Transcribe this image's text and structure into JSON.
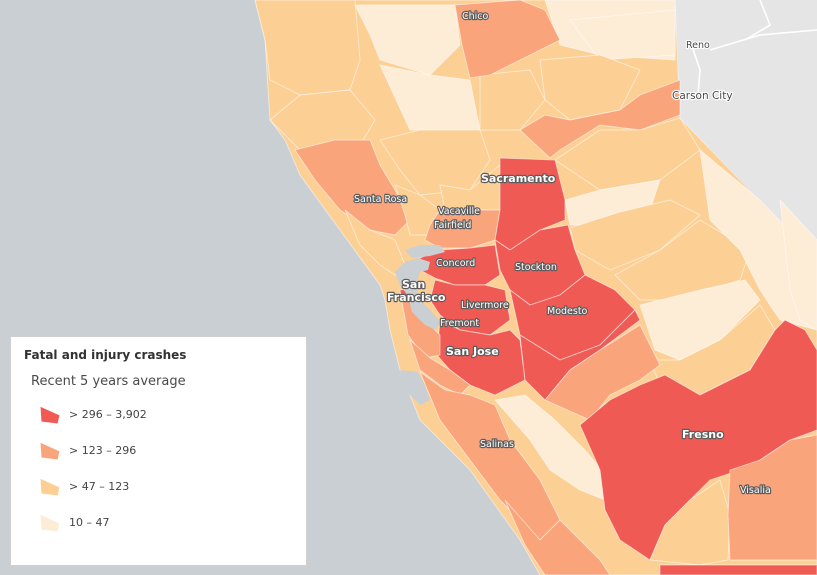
{
  "legend": {
    "title": "Fatal and injury crashes",
    "subtitle": "Recent 5 years average",
    "classes": [
      {
        "label": "> 296 – 3,902",
        "color": "#f05a55"
      },
      {
        "label": "> 123 – 296",
        "color": "#f9a47b"
      },
      {
        "label": "> 47 – 123",
        "color": "#fccf95"
      },
      {
        "label": "10 – 47",
        "color": "#fdecd6"
      }
    ]
  },
  "places": {
    "chico": "Chico",
    "reno": "Reno",
    "carson_city": "Carson City",
    "sacramento": "Sacramento",
    "santa_rosa": "Santa Rosa",
    "vacaville": "Vacaville",
    "fairfield": "Fairfield",
    "concord": "Concord",
    "stockton": "Stockton",
    "san": "San",
    "francisco": "Francisco",
    "livermore": "Livermore",
    "modesto": "Modesto",
    "fremont": "Fremont",
    "san_jose": "San Jose",
    "fresno": "Fresno",
    "salinas": "Salinas",
    "visalia": "Visalia"
  },
  "colors": {
    "water": "#c9cfd3",
    "nevada_land": "#e6e6e6"
  }
}
